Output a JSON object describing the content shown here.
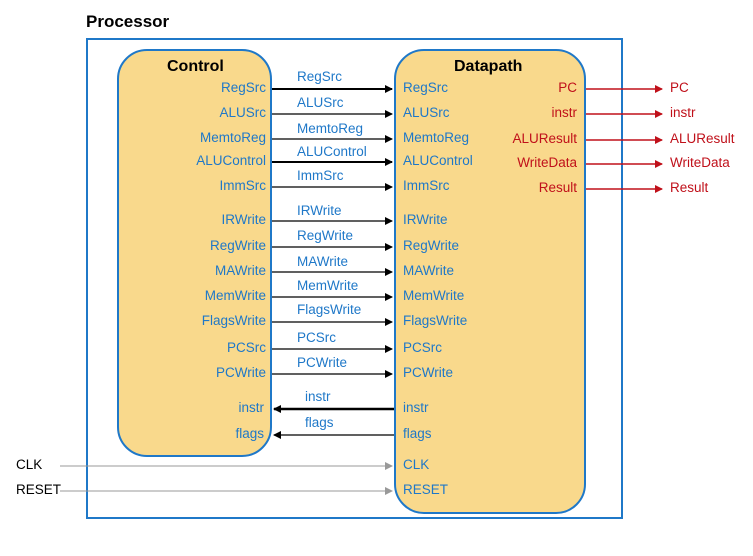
{
  "processor": {
    "title": "Processor"
  },
  "control": {
    "title": "Control",
    "outputs": [
      "RegSrc",
      "ALUSrc",
      "MemtoReg",
      "ALUControl",
      "ImmSrc",
      "IRWrite",
      "RegWrite",
      "MAWrite",
      "MemWrite",
      "FlagsWrite",
      "PCSrc",
      "PCWrite"
    ],
    "inputs": [
      "instr",
      "flags"
    ]
  },
  "datapath": {
    "title": "Datapath",
    "inputs": [
      "RegSrc",
      "ALUSrc",
      "MemtoReg",
      "ALUControl",
      "ImmSrc",
      "IRWrite",
      "RegWrite",
      "MAWrite",
      "MemWrite",
      "FlagsWrite",
      "PCSrc",
      "PCWrite"
    ],
    "outputs_to_control": [
      "instr",
      "flags"
    ],
    "external_inputs": [
      "CLK",
      "RESET"
    ],
    "external_outputs": [
      "PC",
      "instr",
      "ALUResult",
      "WriteData",
      "Result"
    ]
  },
  "wires": {
    "control_to_datapath": [
      "RegSrc",
      "ALUSrc",
      "MemtoReg",
      "ALUControl",
      "ImmSrc",
      "IRWrite",
      "RegWrite",
      "MAWrite",
      "MemWrite",
      "FlagsWrite",
      "PCSrc",
      "PCWrite"
    ],
    "datapath_to_control": [
      "instr",
      "flags"
    ]
  },
  "external": {
    "inputs": [
      "CLK",
      "RESET"
    ],
    "outputs": [
      "PC",
      "instr",
      "ALUResult",
      "WriteData",
      "Result"
    ]
  },
  "colors": {
    "border": "#1f78c8",
    "block_fill": "#f9d98c",
    "signal_text": "#1f78c8",
    "output_text": "#c0101a",
    "wire": "#000000",
    "input_wire": "#aaaaaa"
  }
}
